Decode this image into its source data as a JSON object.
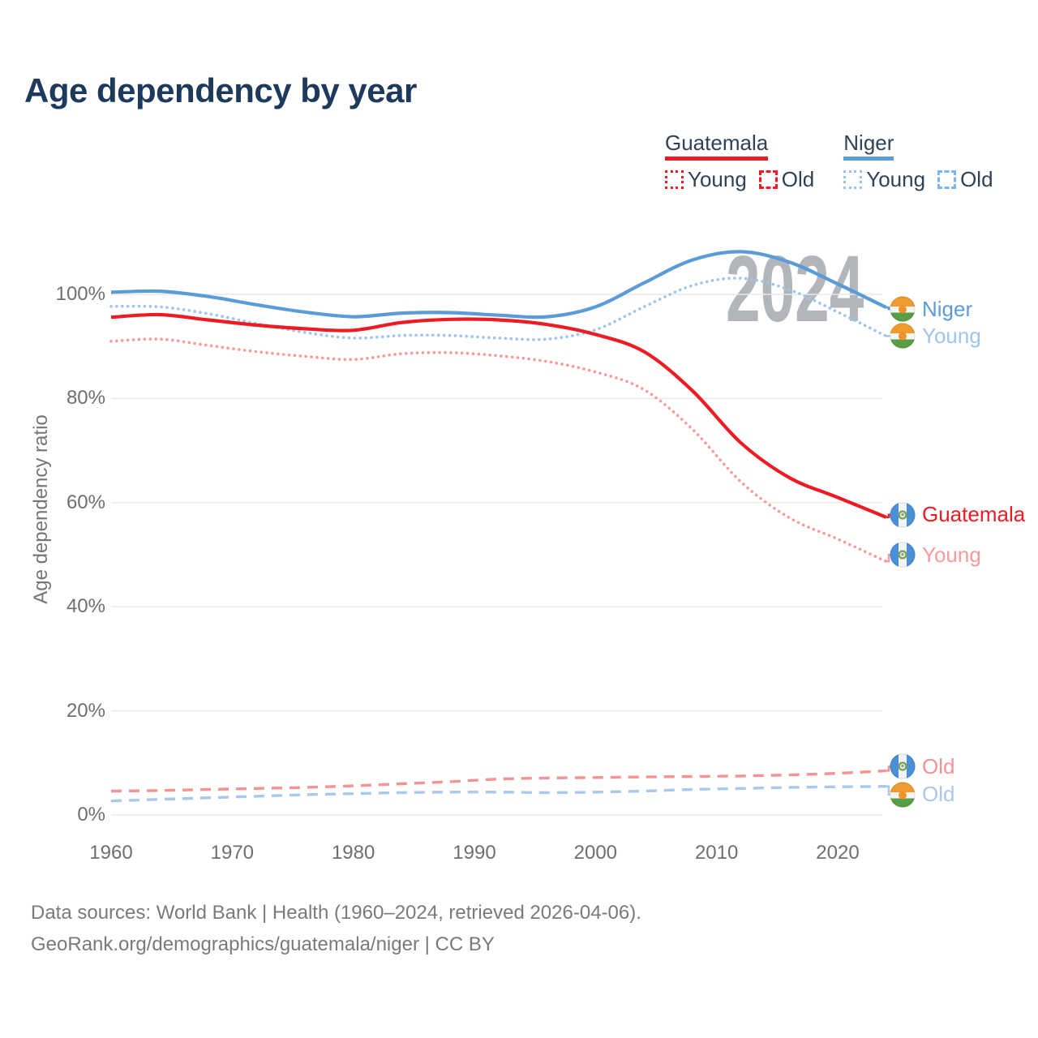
{
  "header": {
    "title": "Age dependency by year"
  },
  "legend": {
    "groups": [
      {
        "name": "Guatemala",
        "color": "#ed1c24",
        "items": [
          {
            "label": "Young",
            "style": "dotted",
            "color": "#ed1c24"
          },
          {
            "label": "Old",
            "style": "dashed",
            "color": "#ed1c24"
          }
        ]
      },
      {
        "name": "Niger",
        "color": "#5b9bd8",
        "items": [
          {
            "label": "Young",
            "style": "dotted",
            "color": "#9cc2e6"
          },
          {
            "label": "Old",
            "style": "dashed",
            "color": "#7fb3ea"
          }
        ]
      }
    ]
  },
  "chart_data": {
    "type": "line",
    "title": "Age dependency by year",
    "ylabel": "Age dependency ratio",
    "watermark": "2024",
    "grid": "horizontal",
    "x_range": [
      1960,
      2024
    ],
    "ylim": [
      0,
      112
    ],
    "x": [
      1960,
      1964,
      1968,
      1972,
      1976,
      1980,
      1984,
      1988,
      1992,
      1996,
      2000,
      2004,
      2008,
      2012,
      2016,
      2020,
      2024
    ],
    "x_ticks": [
      {
        "label": "1960",
        "year": 1960
      },
      {
        "label": "1970",
        "year": 1970
      },
      {
        "label": "1980",
        "year": 1980
      },
      {
        "label": "1990",
        "year": 1990
      },
      {
        "label": "2000",
        "year": 2000
      },
      {
        "label": "2010",
        "year": 2010
      },
      {
        "label": "2020",
        "year": 2020
      }
    ],
    "y_ticks": [
      {
        "label": "100%",
        "value": 100
      },
      {
        "label": "80%",
        "value": 80
      },
      {
        "label": "60%",
        "value": 60
      },
      {
        "label": "40%",
        "value": 40
      },
      {
        "label": "20%",
        "value": 20
      },
      {
        "label": "0%",
        "value": 0
      }
    ],
    "series": [
      {
        "name": "Guatemala Old",
        "country": "Guatemala",
        "component": "old",
        "dash": "dashed",
        "color": "#f59292",
        "flag": "guatemala",
        "label": "Old",
        "values": [
          4.6,
          4.7,
          4.9,
          5.1,
          5.3,
          5.6,
          6.0,
          6.4,
          6.9,
          7.1,
          7.2,
          7.3,
          7.4,
          7.5,
          7.7,
          8.0,
          8.5
        ]
      },
      {
        "name": "Niger Old",
        "country": "Niger",
        "component": "old",
        "dash": "dashed",
        "color": "#a9c9ec",
        "flag": "niger",
        "label": "Old",
        "values": [
          2.7,
          3.0,
          3.3,
          3.6,
          3.9,
          4.1,
          4.3,
          4.4,
          4.4,
          4.3,
          4.4,
          4.6,
          4.9,
          5.1,
          5.3,
          5.4,
          5.5
        ]
      },
      {
        "name": "Guatemala Young",
        "country": "Guatemala",
        "component": "young",
        "dash": "dotted",
        "color": "#f79b9b",
        "flag": "guatemala",
        "label": "Young",
        "values": [
          91.0,
          91.4,
          90.2,
          89.0,
          88.1,
          87.5,
          88.6,
          88.8,
          88.2,
          87.1,
          85.1,
          81.7,
          74.1,
          64.0,
          57.1,
          53.0,
          48.7
        ]
      },
      {
        "name": "Niger Young",
        "country": "Niger",
        "component": "young",
        "dash": "dotted",
        "color": "#9fc5ea",
        "flag": "niger",
        "label": "Young",
        "values": [
          97.7,
          97.6,
          96.3,
          94.4,
          92.7,
          91.6,
          92.1,
          92.1,
          91.6,
          91.4,
          93.2,
          97.6,
          101.7,
          103.1,
          100.9,
          96.6,
          92.0
        ]
      },
      {
        "name": "Niger",
        "country": "Niger",
        "component": "total",
        "dash": "solid",
        "color": "#5b9bd8",
        "flag": "niger",
        "label": "Niger",
        "values": [
          100.4,
          100.6,
          99.6,
          98.0,
          96.6,
          95.7,
          96.4,
          96.5,
          96.0,
          95.7,
          97.6,
          102.2,
          106.6,
          108.2,
          106.2,
          102.0,
          97.5
        ]
      },
      {
        "name": "Guatemala",
        "country": "Guatemala",
        "component": "total",
        "dash": "solid",
        "color": "#ed1c24",
        "flag": "guatemala",
        "label": "Guatemala",
        "values": [
          95.6,
          96.1,
          95.1,
          94.1,
          93.4,
          93.1,
          94.6,
          95.2,
          95.1,
          94.2,
          92.3,
          89.0,
          81.5,
          71.5,
          64.8,
          61.0,
          57.2
        ]
      }
    ]
  },
  "footer": {
    "line1": "Data sources: World Bank | Health (1960–2024, retrieved 2026-04-06).",
    "line2": "GeoRank.org/demographics/guatemala/niger | CC BY"
  }
}
